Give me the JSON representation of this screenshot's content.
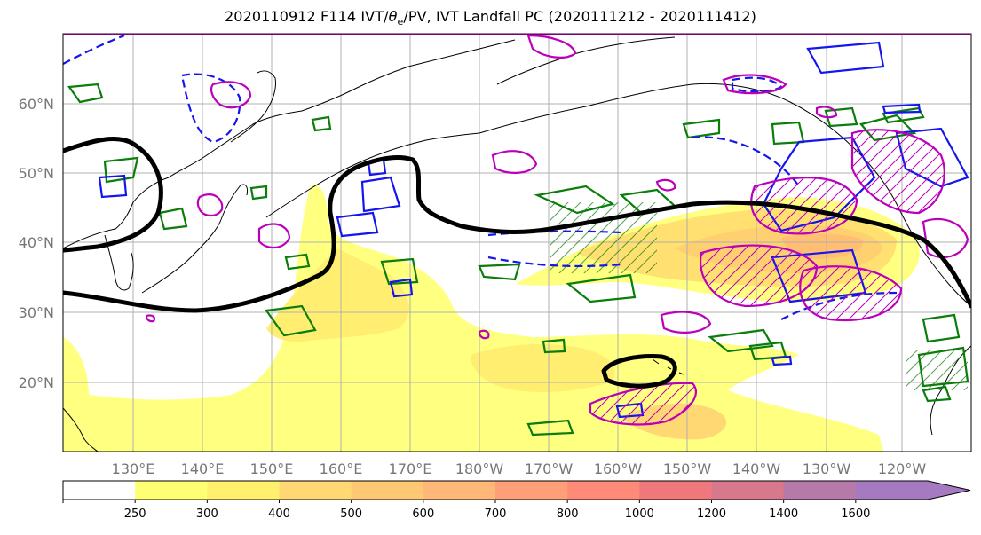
{
  "title": {
    "pre": "2020110912 F114 IVT/",
    "theta": "θ",
    "sub": "e",
    "post": "/PV, IVT Landfall PC (2020111212 - 2020111412)"
  },
  "lat_labels": [
    "60°N",
    "50°N",
    "40°N",
    "30°N",
    "20°N"
  ],
  "lon_labels": [
    "130°E",
    "140°E",
    "150°E",
    "160°E",
    "170°E",
    "180°W",
    "170°W",
    "160°W",
    "150°W",
    "140°W",
    "130°W",
    "120°W"
  ],
  "colorbar": {
    "tick_labels": [
      "250",
      "300",
      "400",
      "500",
      "600",
      "700",
      "800",
      "1000",
      "1200",
      "1400",
      "1600"
    ],
    "colors": [
      "#ffffff",
      "#ffff73",
      "#fff06e",
      "#ffd873",
      "#ffc873",
      "#ffb877",
      "#ff9f78",
      "#ff8a78",
      "#f0787c",
      "#d7788c",
      "#b57aa8",
      "#a67ac0"
    ],
    "extend": "max"
  },
  "map_data": {
    "type": "contour_map",
    "region": "North Pacific",
    "lat_ticks": [
      60,
      50,
      40,
      30,
      20
    ],
    "lon_ticks": [
      "130°E",
      "140°E",
      "150°E",
      "160°E",
      "170°E",
      "180°W",
      "170°W",
      "160°W",
      "150°W",
      "140°W",
      "130°W",
      "120°W"
    ],
    "filled_field": "IVT",
    "colors": {
      "pv_contour": "#000000",
      "theta_e_positive": "#0a7d0a",
      "theta_e_negative": "#1515ee",
      "landfall_pc": "#bb00bb",
      "coastline": "#000000",
      "grid": "#b0b0b0"
    }
  }
}
